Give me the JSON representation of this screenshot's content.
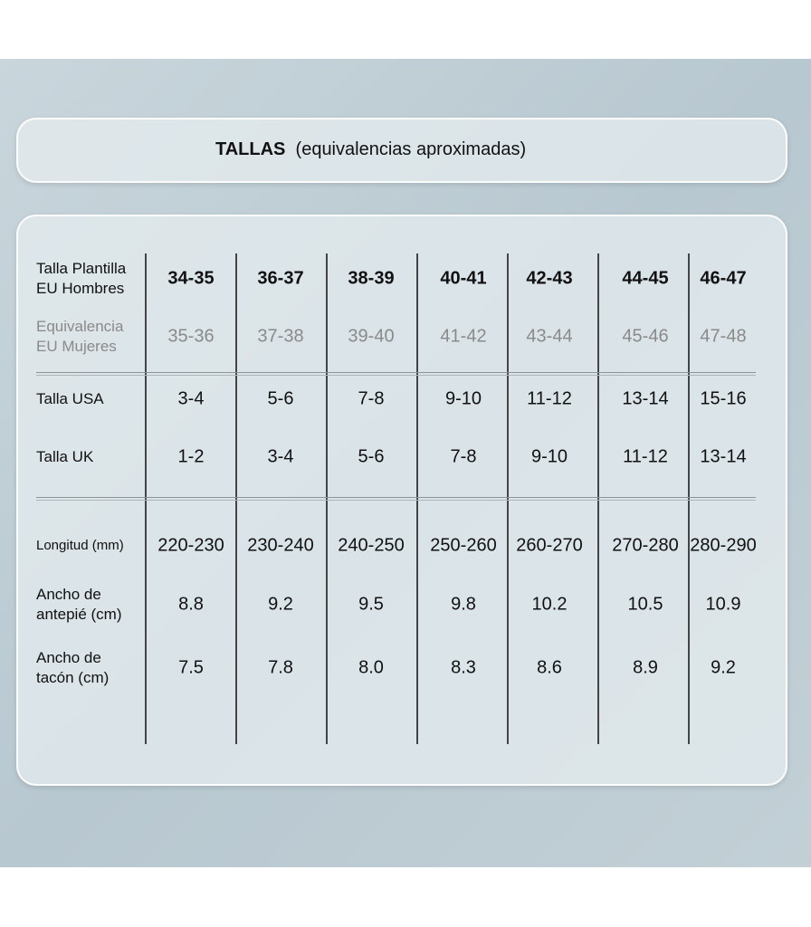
{
  "header": {
    "title": "TALLAS",
    "subtitle": "(equivalencias aproximadas)"
  },
  "table": {
    "rows": [
      {
        "label": [
          "Talla Plantilla",
          "EU Hombres"
        ],
        "values": [
          "34-35",
          "36-37",
          "38-39",
          "40-41",
          "42-43",
          "44-45",
          "46-47"
        ]
      },
      {
        "label": [
          "Equivalencia",
          "EU Mujeres"
        ],
        "values": [
          "35-36",
          "37-38",
          "39-40",
          "41-42",
          "43-44",
          "45-46",
          "47-48"
        ]
      },
      {
        "label": [
          "Talla USA"
        ],
        "values": [
          "3-4",
          "5-6",
          "7-8",
          "9-10",
          "11-12",
          "13-14",
          "15-16"
        ]
      },
      {
        "label": [
          "Talla UK"
        ],
        "values": [
          "1-2",
          "3-4",
          "5-6",
          "7-8",
          "9-10",
          "11-12",
          "13-14"
        ]
      },
      {
        "label": [
          "Longitud (mm)"
        ],
        "values": [
          "220-230",
          "230-240",
          "240-250",
          "250-260",
          "260-270",
          "270-280",
          "280-290"
        ]
      },
      {
        "label": [
          "Ancho de",
          "antepié (cm)"
        ],
        "values": [
          "8.8",
          "9.2",
          "9.5",
          "9.8",
          "10.2",
          "10.5",
          "10.9"
        ]
      },
      {
        "label": [
          "Ancho de",
          "tacón (cm)"
        ],
        "values": [
          "7.5",
          "7.8",
          "8.0",
          "8.3",
          "8.6",
          "8.9",
          "9.2"
        ]
      }
    ]
  }
}
